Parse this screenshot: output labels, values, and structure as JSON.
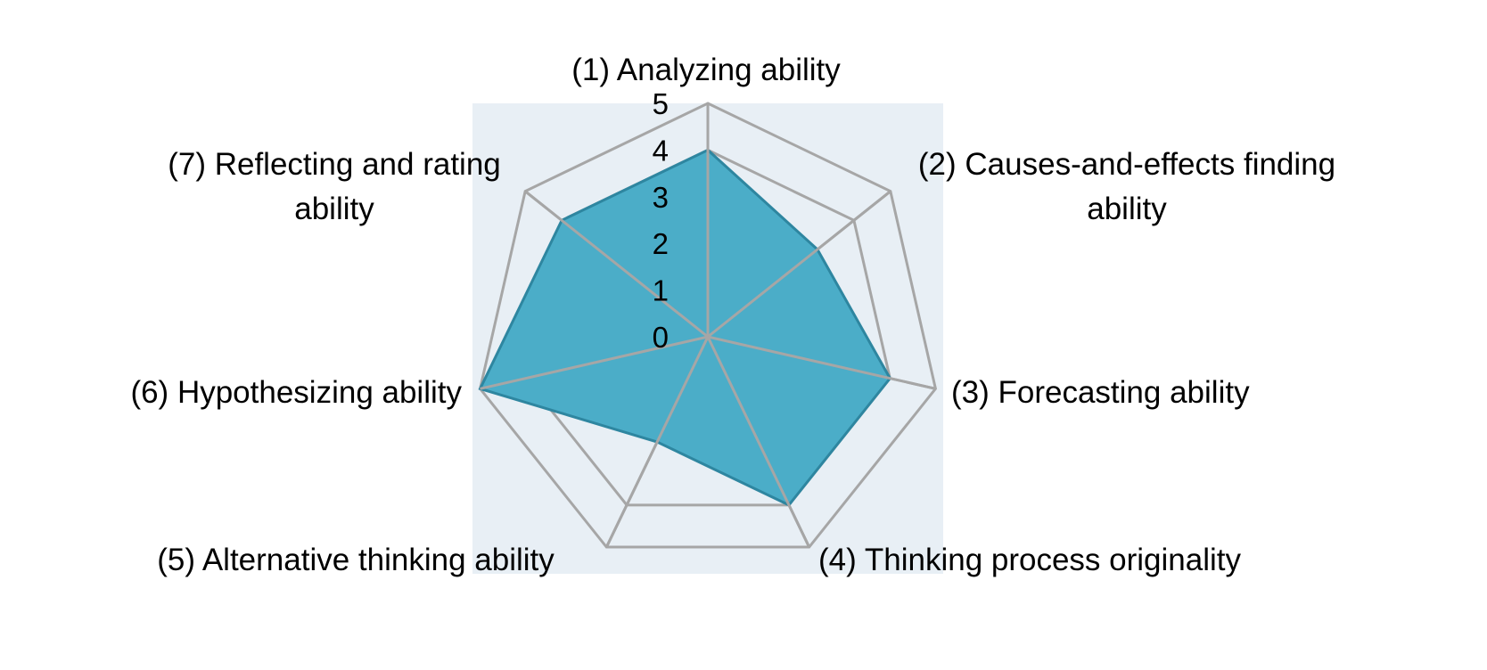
{
  "chart_data": {
    "type": "radar",
    "title": "",
    "categories": [
      "(1) Analyzing ability",
      "(2) Causes-and-effects finding ability",
      "(3) Forecasting ability",
      "(4) Thinking process originality",
      "(5) Alternative thinking ability",
      "(6) Hypothesizing ability",
      "(7) Reflecting and rating ability"
    ],
    "series": [
      {
        "values": [
          4,
          3,
          4,
          4,
          2.5,
          5,
          4
        ]
      }
    ],
    "rlim": [
      0,
      5
    ],
    "ticks": [
      0,
      1,
      2,
      3,
      4,
      5
    ],
    "grid": true,
    "legend": "none",
    "colors": {
      "fill": "#4badc8",
      "stroke": "#2e86a0",
      "grid": "#a6a6a6",
      "plot_background": "#e8eff5"
    }
  }
}
